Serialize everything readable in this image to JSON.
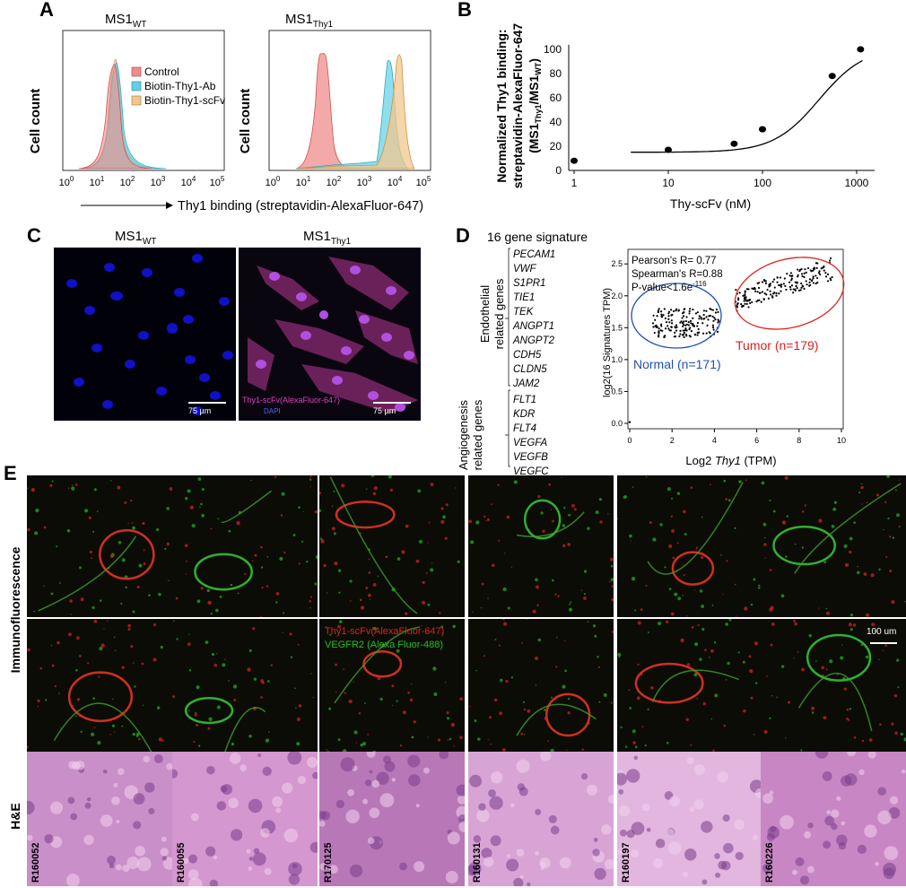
{
  "panels": {
    "A": "A",
    "B": "B",
    "C": "C",
    "D": "D",
    "E": "E"
  },
  "panelA": {
    "left_title_main": "MS1",
    "left_title_sub": "WT",
    "right_title_main": "MS1",
    "right_title_sub": "Thy1",
    "ylabel": "Cell count",
    "xlabel": "Thy1 binding (streptavidin-AlexaFluor-647)",
    "ticks": [
      "10",
      "10",
      "10",
      "10",
      "10",
      "10"
    ],
    "tick_exp": [
      "0",
      "1",
      "2",
      "3",
      "4",
      "5"
    ],
    "legend": [
      {
        "label": "Control",
        "color": "#f08c8c"
      },
      {
        "label": "Biotin-Thy1-Ab",
        "color": "#5fd0e6"
      },
      {
        "label": "Biotin-Thy1-scFv",
        "color": "#f2c78e"
      }
    ]
  },
  "chart_data": {
    "type": "scatter",
    "xlabel": "Thy-scFv (nM)",
    "ylabel_line1": "Normalized  Thy1 binding:",
    "ylabel_line2": "streptavidin-AlexaFluor-647",
    "ylabel_line3": "(MS1",
    "ylabel_sub1": "Thy1",
    "ylabel_mid": "/MS1",
    "ylabel_sub2": "WT",
    "ylabel_end": ")",
    "xscale": "log",
    "xlim": [
      1,
      1000
    ],
    "ylim": [
      0,
      100
    ],
    "xticks": [
      "1",
      "10",
      "100",
      "1000"
    ],
    "yticks": [
      "0",
      "20",
      "40",
      "60",
      "80",
      "100"
    ],
    "x": [
      1,
      10,
      50,
      100,
      550,
      1100
    ],
    "y": [
      8,
      17,
      22,
      34,
      78,
      100
    ]
  },
  "panelC": {
    "left_title": "MS1",
    "left_sub": "WT",
    "right_title": "MS1",
    "right_sub": "Thy1",
    "scale_left": "75 µm",
    "scale_right": "75 µm",
    "legend1": "Thy1-scFv(AlexaFluor-647)",
    "legend2": "DAPI"
  },
  "panelD": {
    "title": "16 gene signature",
    "group1": [
      "Endothelial",
      "related genes"
    ],
    "group2": [
      "Angiogenesis",
      "related genes"
    ],
    "genes1": [
      "PECAM1",
      "VWF",
      "S1PR1",
      "TIE1",
      "TEK",
      "ANGPT1",
      "ANGPT2",
      "CDH5",
      "CLDN5",
      "JAM2"
    ],
    "genes2": [
      "FLT1",
      "KDR",
      "FLT4",
      "VEGFA",
      "VEGFB",
      "VEGFC"
    ],
    "stat1": "Pearson's R= 0.77",
    "stat2": "Spearman's R=0.88",
    "stat3": "P-value<1.6e",
    "stat3_exp": "-116",
    "tumor": "Tumor (n=179)",
    "normal": "Normal  (n=171)",
    "ylabel": "log2(16 Signatures TPM)",
    "xlabel_pre": "Log2 ",
    "xlabel_it": "Thy1",
    "xlabel_post": " (TPM)",
    "xticks": [
      "0",
      "2",
      "4",
      "6",
      "8",
      "10"
    ],
    "yticks": [
      "0.0",
      "0.5",
      "1.0",
      "1.5",
      "2.0",
      "2.5"
    ]
  },
  "panelE": {
    "row1_label": "Immunofluorescence",
    "row2_label": "H&E",
    "legend1": "Thy1-scFv(AlexaFluor-647)",
    "legend2": "VEGFR2 (Alexa Fluor-488)",
    "scale": "100 um",
    "samples": [
      "R160052",
      "R160055",
      "R170125",
      "R160131",
      "R160197",
      "R160226"
    ]
  }
}
